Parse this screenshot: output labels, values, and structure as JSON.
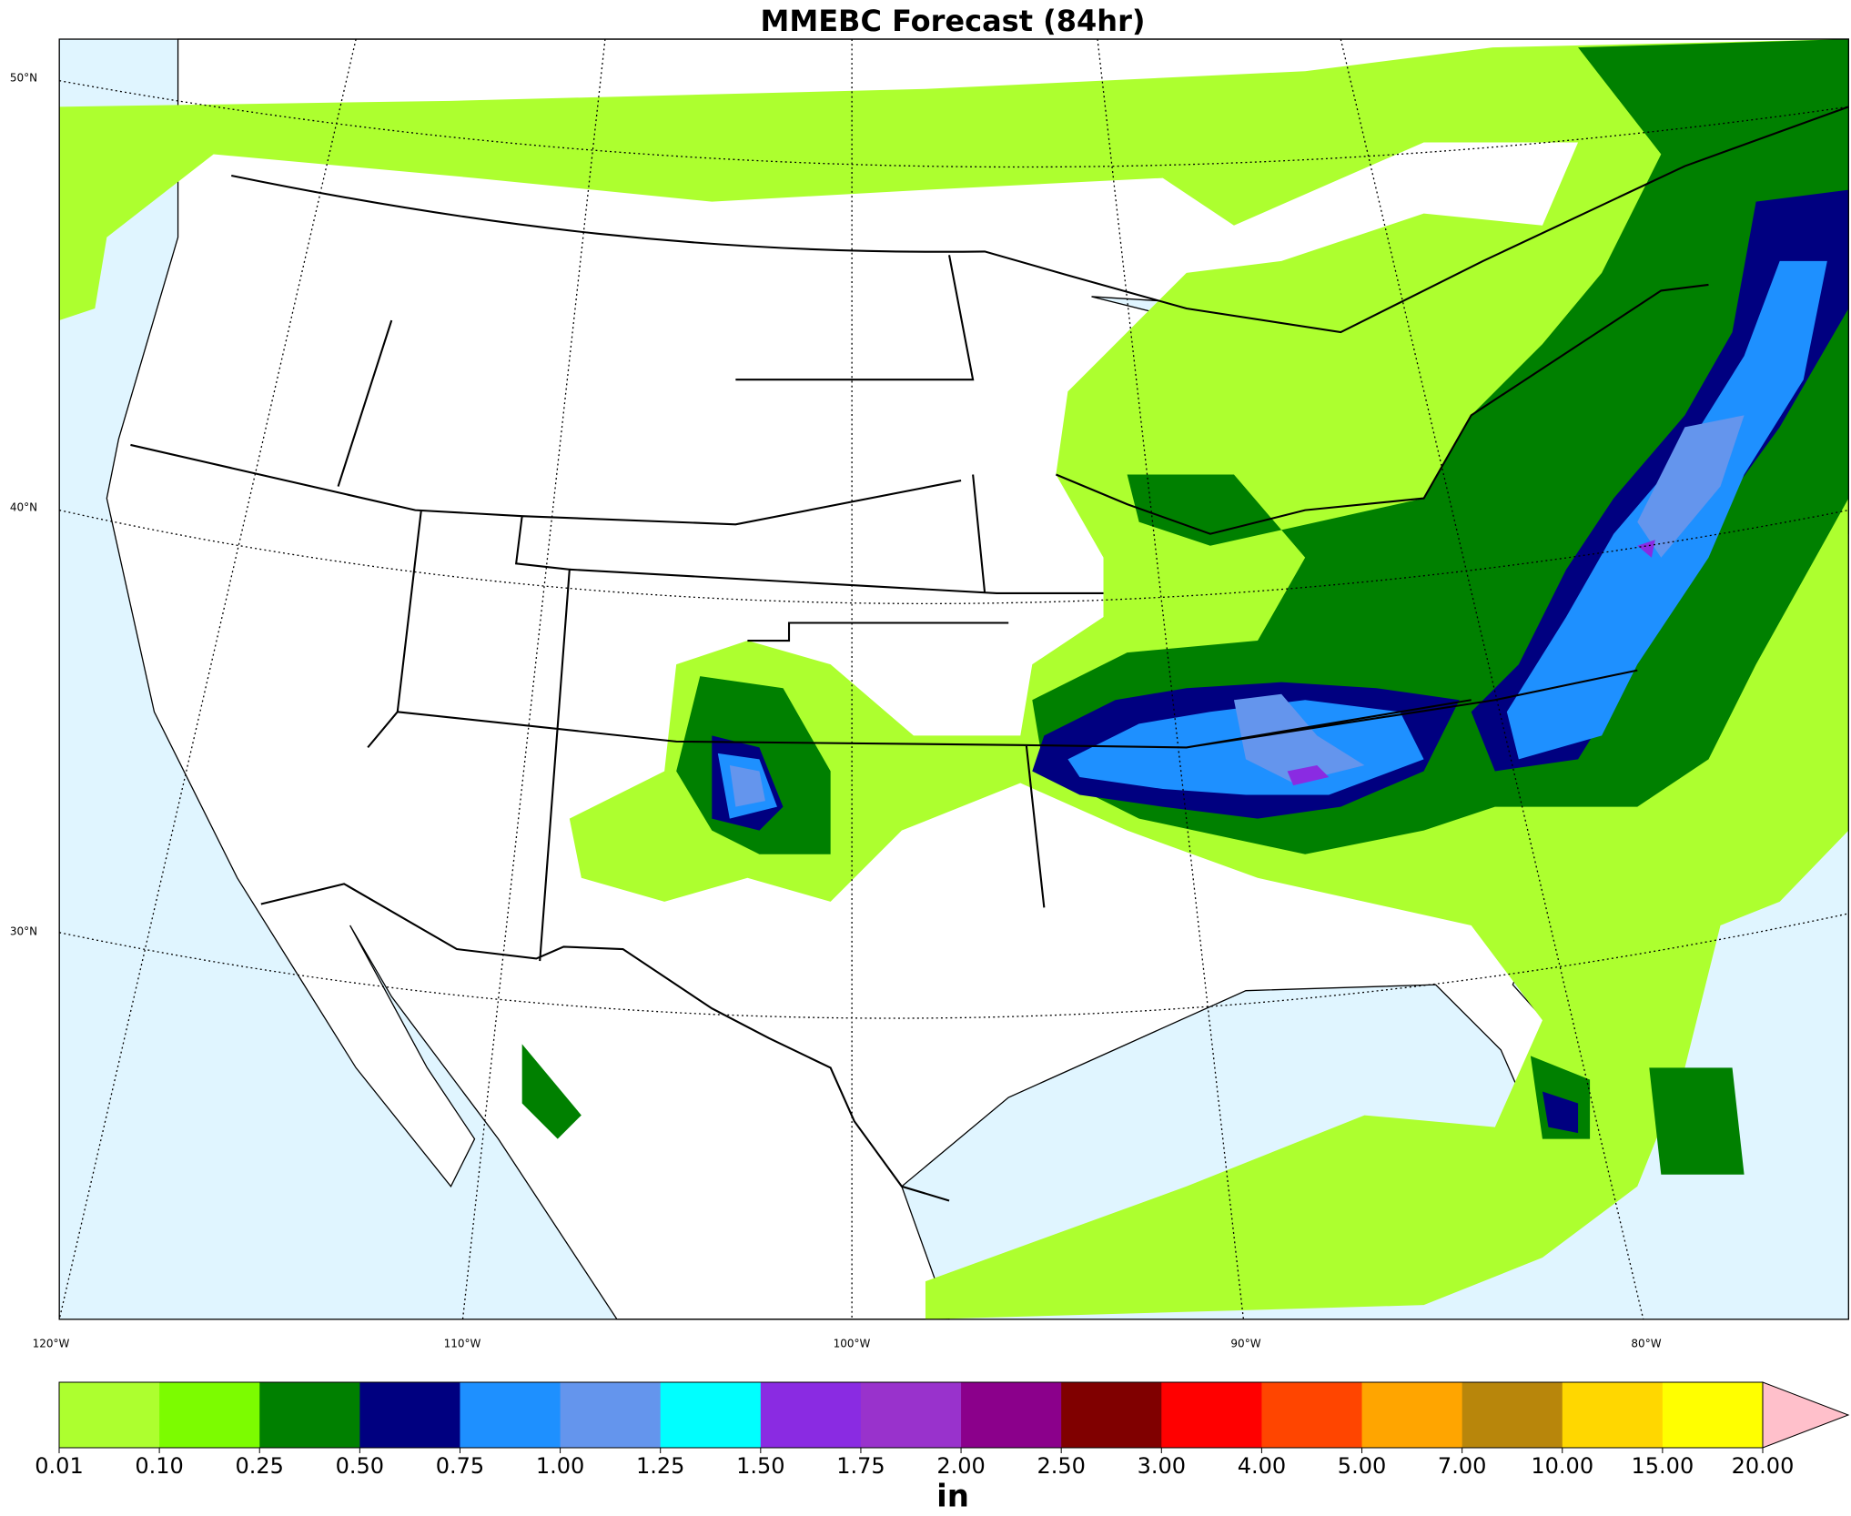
{
  "title": "MMEBC Forecast (84hr)",
  "lat_labels": [
    "50°N",
    "40°N",
    "30°N"
  ],
  "lon_labels": [
    "120°W",
    "110°W",
    "100°W",
    "90°W",
    "80°W"
  ],
  "colorbar": {
    "levels": [
      {
        "value": 0.01,
        "label": "0.01"
      },
      {
        "value": 0.1,
        "label": "0.10"
      },
      {
        "value": 0.25,
        "label": "0.25"
      },
      {
        "value": 0.5,
        "label": "0.50"
      },
      {
        "value": 0.75,
        "label": "0.75"
      },
      {
        "value": 1,
        "label": "1.00"
      },
      {
        "value": 1.25,
        "label": "1.25"
      },
      {
        "value": 1.5,
        "label": "1.50"
      },
      {
        "value": 1.75,
        "label": "1.75"
      },
      {
        "value": 2,
        "label": "2.00"
      },
      {
        "value": 2.5,
        "label": "2.50"
      },
      {
        "value": 3,
        "label": "3.00"
      },
      {
        "value": 4,
        "label": "4.00"
      },
      {
        "value": 5,
        "label": "5.00"
      },
      {
        "value": 7,
        "label": "7.00"
      },
      {
        "value": 10,
        "label": "10.00"
      },
      {
        "value": 15,
        "label": "15.00"
      },
      {
        "value": 20,
        "label": "20.00"
      }
    ],
    "colors": [
      "#adff2f",
      "#7cfc00",
      "#008000",
      "#000080",
      "#1e90ff",
      "#6495ed",
      "#00ffff",
      "#8a2be2",
      "#9932cc",
      "#8b008b",
      "#800000",
      "#ff0000",
      "#ff4500",
      "#ffa500",
      "#b8860b",
      "#ffd700",
      "#ffff00"
    ],
    "extend_color": "#ffc0cb",
    "label": "in"
  }
}
